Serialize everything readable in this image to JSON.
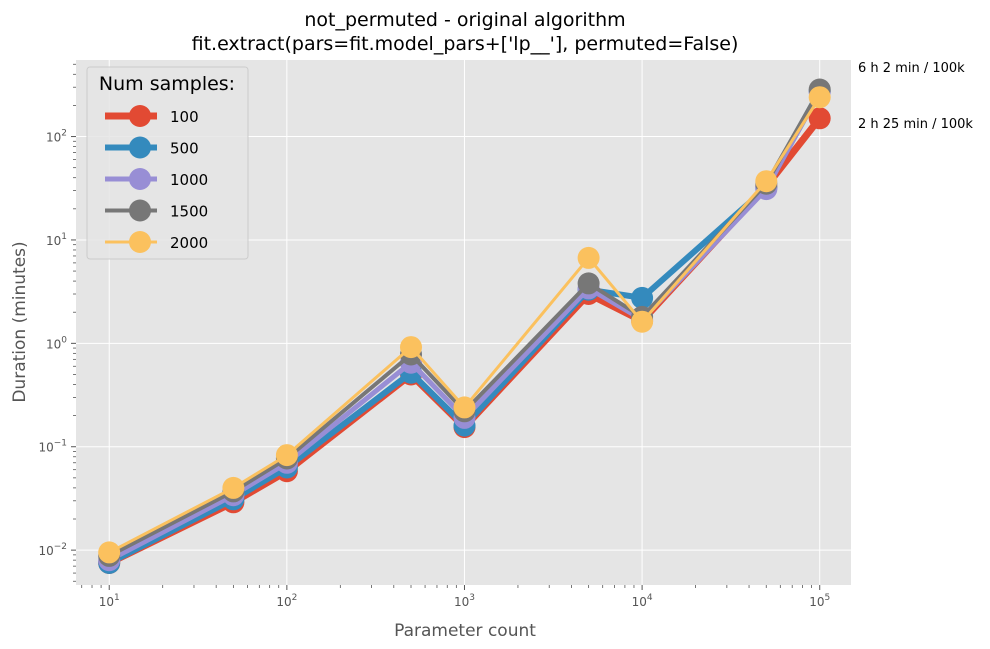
{
  "chart_data": {
    "type": "line",
    "title": "not_permuted - original algorithm",
    "subtitle": "fit.extract(pars=fit.model_pars+['lp__'], permuted=False)",
    "xlabel": "Parameter count",
    "ylabel": "Duration (minutes)",
    "x_scale": "log",
    "y_scale": "log",
    "xlim": [
      6.5,
      150000
    ],
    "ylim": [
      0.0046,
      550
    ],
    "x_ticks": [
      {
        "value": 10,
        "base": "10",
        "exp": "1"
      },
      {
        "value": 100,
        "base": "10",
        "exp": "2"
      },
      {
        "value": 1000,
        "base": "10",
        "exp": "3"
      },
      {
        "value": 10000,
        "base": "10",
        "exp": "4"
      },
      {
        "value": 100000,
        "base": "10",
        "exp": "5"
      }
    ],
    "y_ticks": [
      {
        "value": 0.01,
        "base": "10",
        "exp": "−2"
      },
      {
        "value": 0.1,
        "base": "10",
        "exp": "−1"
      },
      {
        "value": 1,
        "base": "10",
        "exp": "0"
      },
      {
        "value": 10,
        "base": "10",
        "exp": "1"
      },
      {
        "value": 100,
        "base": "10",
        "exp": "2"
      }
    ],
    "grid": true,
    "legend_title": "Num samples:",
    "legend_position": "top-left",
    "x": [
      10,
      50,
      100,
      500,
      1000,
      5000,
      10000,
      50000,
      100000
    ],
    "series": [
      {
        "name": "100",
        "color": "#E24A33",
        "line_width": 7,
        "values": [
          0.0075,
          0.029,
          0.058,
          0.5,
          0.155,
          3.0,
          1.65,
          33,
          150
        ]
      },
      {
        "name": "500",
        "color": "#348ABD",
        "line_width": 6,
        "values": [
          0.0075,
          0.031,
          0.063,
          0.52,
          0.16,
          3.3,
          2.75,
          32,
          275
        ]
      },
      {
        "name": "1000",
        "color": "#988ED5",
        "line_width": 5,
        "values": [
          0.008,
          0.034,
          0.07,
          0.65,
          0.19,
          3.4,
          1.7,
          31,
          270
        ]
      },
      {
        "name": "1500",
        "color": "#777777",
        "line_width": 4,
        "values": [
          0.0088,
          0.037,
          0.077,
          0.78,
          0.22,
          3.8,
          1.8,
          35,
          285
        ]
      },
      {
        "name": "2000",
        "color": "#FBC15E",
        "line_width": 3,
        "values": [
          0.0095,
          0.04,
          0.083,
          0.92,
          0.24,
          6.7,
          1.62,
          37,
          240
        ]
      }
    ],
    "annotations": [
      {
        "text": "6 h 2 min / 100k"
      },
      {
        "text": "2 h 25 min / 100k"
      }
    ]
  }
}
